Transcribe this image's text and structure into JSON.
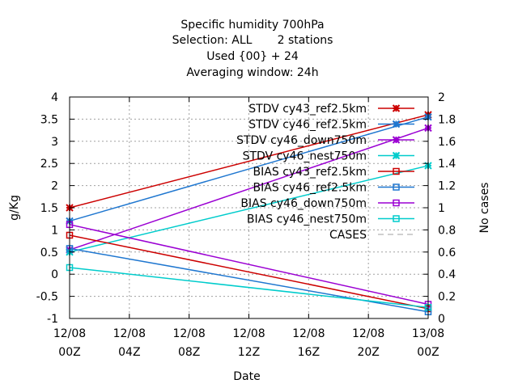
{
  "chart_data": {
    "type": "line",
    "title_lines": [
      "Specific humidity 700hPa",
      "Selection: ALL       2 stations",
      "Used {00} + 24",
      "Averaging window: 24h"
    ],
    "xlabel": "Date",
    "ylabel": "g/Kg",
    "y2label": "No cases",
    "x_ticks": [
      {
        "hours": 0,
        "line1": "12/08",
        "line2": "00Z"
      },
      {
        "hours": 4,
        "line1": "12/08",
        "line2": "04Z"
      },
      {
        "hours": 8,
        "line1": "12/08",
        "line2": "08Z"
      },
      {
        "hours": 12,
        "line1": "12/08",
        "line2": "12Z"
      },
      {
        "hours": 16,
        "line1": "12/08",
        "line2": "16Z"
      },
      {
        "hours": 20,
        "line1": "12/08",
        "line2": "20Z"
      },
      {
        "hours": 24,
        "line1": "13/08",
        "line2": "00Z"
      }
    ],
    "xlim_hours": [
      0,
      24
    ],
    "ylim": [
      -1,
      4
    ],
    "y_ticks": [
      "-1",
      "-0.5",
      "0",
      "0.5",
      "1",
      "1.5",
      "2",
      "2.5",
      "3",
      "3.5",
      "4"
    ],
    "y2lim": [
      0,
      2
    ],
    "y2_ticks": [
      "0",
      "0.2",
      "0.4",
      "0.6",
      "0.8",
      "1",
      "1.2",
      "1.4",
      "1.6",
      "1.8",
      "2"
    ],
    "grid": true,
    "legend_position": "top-right",
    "series": [
      {
        "name": "STDV cy43_ref2.5km",
        "color": "#cc0000",
        "marker": "star",
        "x": [
          0,
          24
        ],
        "values": [
          1.5,
          3.6
        ]
      },
      {
        "name": "STDV cy46_ref2.5km",
        "color": "#1f77d0",
        "marker": "star",
        "x": [
          0,
          24
        ],
        "values": [
          1.2,
          3.55
        ]
      },
      {
        "name": "STDV cy46_down750m",
        "color": "#9b00d3",
        "marker": "star",
        "x": [
          0,
          24
        ],
        "values": [
          0.55,
          3.3
        ]
      },
      {
        "name": "STDV cy46_nest750m",
        "color": "#00cccc",
        "marker": "star",
        "x": [
          0,
          24
        ],
        "values": [
          0.5,
          2.45
        ]
      },
      {
        "name": "BIAS cy43_ref2.5km",
        "color": "#cc0000",
        "marker": "square",
        "x": [
          0,
          24
        ],
        "values": [
          0.88,
          -0.78
        ]
      },
      {
        "name": "BIAS cy46_ref2.5km",
        "color": "#1f77d0",
        "marker": "square",
        "x": [
          0,
          24
        ],
        "values": [
          0.58,
          -0.85
        ]
      },
      {
        "name": "BIAS cy46_down750m",
        "color": "#9b00d3",
        "marker": "square",
        "x": [
          0,
          24
        ],
        "values": [
          1.12,
          -0.68
        ]
      },
      {
        "name": "BIAS cy46_nest750m",
        "color": "#00cccc",
        "marker": "square",
        "x": [
          0,
          24
        ],
        "values": [
          0.15,
          -0.75
        ]
      },
      {
        "name": "CASES",
        "color": "#a0a0a0",
        "marker": "none",
        "dashed": true,
        "axis": "y2",
        "x": [],
        "values": []
      }
    ]
  }
}
